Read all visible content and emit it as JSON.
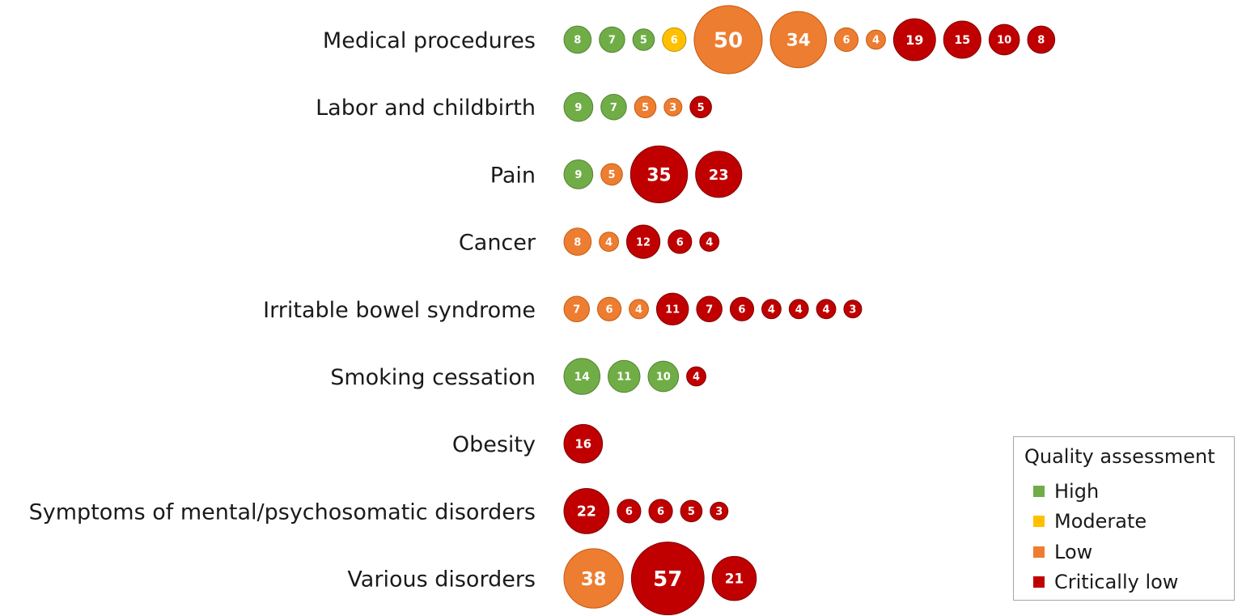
{
  "chart_data": {
    "type": "bubble",
    "title": "",
    "colors": {
      "High": "#70ad47",
      "Moderate": "#ffc000",
      "Low": "#ed7d31",
      "Critically low": "#c00000"
    },
    "rows": [
      {
        "label": "Medical procedures",
        "bubbles": [
          {
            "value": 8,
            "quality": "High"
          },
          {
            "value": 7,
            "quality": "High"
          },
          {
            "value": 5,
            "quality": "High"
          },
          {
            "value": 6,
            "quality": "Moderate"
          },
          {
            "value": 50,
            "quality": "Low"
          },
          {
            "value": 34,
            "quality": "Low"
          },
          {
            "value": 6,
            "quality": "Low"
          },
          {
            "value": 4,
            "quality": "Low"
          },
          {
            "value": 19,
            "quality": "Critically low"
          },
          {
            "value": 15,
            "quality": "Critically low"
          },
          {
            "value": 10,
            "quality": "Critically low"
          },
          {
            "value": 8,
            "quality": "Critically low"
          }
        ]
      },
      {
        "label": "Labor and childbirth",
        "bubbles": [
          {
            "value": 9,
            "quality": "High"
          },
          {
            "value": 7,
            "quality": "High"
          },
          {
            "value": 5,
            "quality": "Low"
          },
          {
            "value": 3,
            "quality": "Low"
          },
          {
            "value": 5,
            "quality": "Critically low"
          }
        ]
      },
      {
        "label": "Pain",
        "bubbles": [
          {
            "value": 9,
            "quality": "High"
          },
          {
            "value": 5,
            "quality": "Low"
          },
          {
            "value": 35,
            "quality": "Critically low"
          },
          {
            "value": 23,
            "quality": "Critically low"
          }
        ]
      },
      {
        "label": "Cancer",
        "bubbles": [
          {
            "value": 8,
            "quality": "Low"
          },
          {
            "value": 4,
            "quality": "Low"
          },
          {
            "value": 12,
            "quality": "Critically low"
          },
          {
            "value": 6,
            "quality": "Critically low"
          },
          {
            "value": 4,
            "quality": "Critically low"
          }
        ]
      },
      {
        "label": "Irritable bowel syndrome",
        "bubbles": [
          {
            "value": 7,
            "quality": "Low"
          },
          {
            "value": 6,
            "quality": "Low"
          },
          {
            "value": 4,
            "quality": "Low"
          },
          {
            "value": 11,
            "quality": "Critically low"
          },
          {
            "value": 7,
            "quality": "Critically low"
          },
          {
            "value": 6,
            "quality": "Critically low"
          },
          {
            "value": 4,
            "quality": "Critically low"
          },
          {
            "value": 4,
            "quality": "Critically low"
          },
          {
            "value": 4,
            "quality": "Critically low"
          },
          {
            "value": 3,
            "quality": "Critically low"
          }
        ]
      },
      {
        "label": "Smoking cessation",
        "bubbles": [
          {
            "value": 14,
            "quality": "High"
          },
          {
            "value": 11,
            "quality": "High"
          },
          {
            "value": 10,
            "quality": "High"
          },
          {
            "value": 4,
            "quality": "Critically low"
          }
        ]
      },
      {
        "label": "Obesity",
        "bubbles": [
          {
            "value": 16,
            "quality": "Critically low"
          }
        ]
      },
      {
        "label": "Symptoms of mental/psychosomatic disorders",
        "bubbles": [
          {
            "value": 22,
            "quality": "Critically low"
          },
          {
            "value": 6,
            "quality": "Critically low"
          },
          {
            "value": 6,
            "quality": "Critically low"
          },
          {
            "value": 5,
            "quality": "Critically low"
          },
          {
            "value": 3,
            "quality": "Critically low"
          }
        ]
      },
      {
        "label": "Various disorders",
        "bubbles": [
          {
            "value": 38,
            "quality": "Low"
          },
          {
            "value": 57,
            "quality": "Critically low"
          },
          {
            "value": 21,
            "quality": "Critically low"
          }
        ]
      }
    ],
    "legend": {
      "title": "Quality assessment",
      "placement": "bottom-right",
      "items": [
        {
          "label": "High",
          "color": "#70ad47"
        },
        {
          "label": "Moderate",
          "color": "#ffc000"
        },
        {
          "label": "Low",
          "color": "#ed7d31"
        },
        {
          "label": "Critically low",
          "color": "#c00000"
        }
      ]
    }
  }
}
